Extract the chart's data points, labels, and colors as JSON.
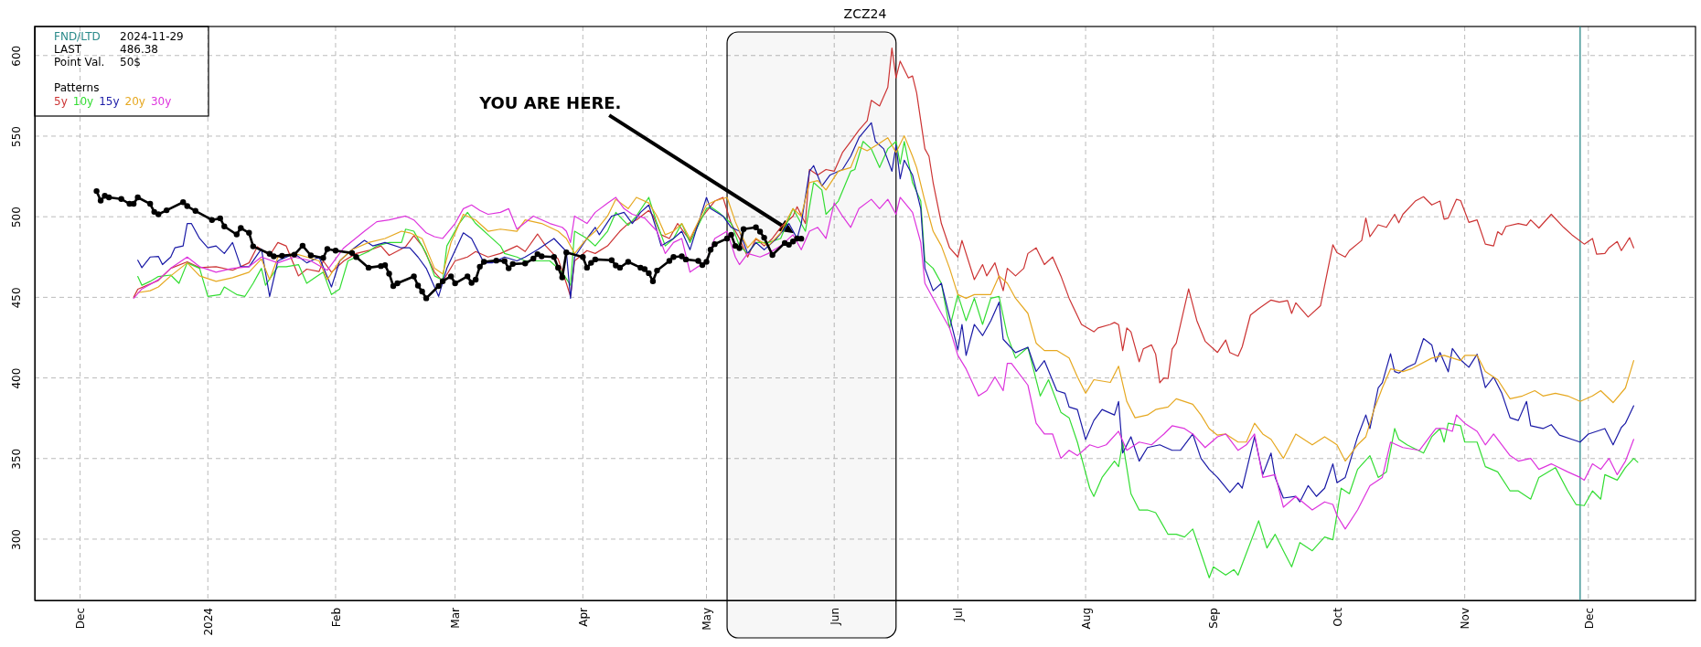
{
  "chart_data": {
    "type": "line",
    "title": "ZCZ24",
    "legend_title": "Patterns",
    "legend": "top left",
    "grid": true,
    "xlim": [
      "2023-11-20",
      "2024-12-27"
    ],
    "ylim": [
      262,
      618
    ],
    "xticks": [
      {
        "value": "2023-12-01",
        "label": "Dec"
      },
      {
        "value": "2024-01-01",
        "label": "2024"
      },
      {
        "value": "2024-02-01",
        "label": "Feb"
      },
      {
        "value": "2024-03-01",
        "label": "Mar"
      },
      {
        "value": "2024-04-01",
        "label": "Apr"
      },
      {
        "value": "2024-05-01",
        "label": "May"
      },
      {
        "value": "2024-06-01",
        "label": "Jun"
      },
      {
        "value": "2024-07-01",
        "label": "Jul"
      },
      {
        "value": "2024-08-01",
        "label": "Aug"
      },
      {
        "value": "2024-09-01",
        "label": "Sep"
      },
      {
        "value": "2024-10-01",
        "label": "Oct"
      },
      {
        "value": "2024-11-01",
        "label": "Nov"
      },
      {
        "value": "2024-12-01",
        "label": "Dec"
      }
    ],
    "yticks": [
      300,
      350,
      400,
      450,
      500,
      550,
      600
    ],
    "annotations": [
      "FND/LTD",
      "2024-11-29",
      "LAST",
      "486.38",
      "Point Val.",
      "50$",
      "YOU ARE HERE."
    ],
    "ref_lines": [
      {
        "axis": "x",
        "value": "2024-11-29",
        "color": "#2a8a8a"
      }
    ],
    "bands": [
      {
        "axis": "x",
        "from": "2024-05-06",
        "to": "2024-06-16",
        "color": "#000000"
      }
    ],
    "series": [
      {
        "name": "5y",
        "color": "#cc3333",
        "x": [
          "2023-12-14",
          "2023-12-15",
          "2023-12-20",
          "2023-12-23",
          "2023-12-27",
          "2023-12-30",
          "2024-01-03",
          "2024-01-07",
          "2024-01-11",
          "2024-01-13",
          "2024-01-16",
          "2024-01-18",
          "2024-01-20",
          "2024-01-23",
          "2024-01-25",
          "2024-01-28",
          "2024-01-29",
          "2024-01-31",
          "2024-02-03",
          "2024-02-06",
          "2024-02-09",
          "2024-02-12",
          "2024-02-14",
          "2024-02-18",
          "2024-02-20",
          "2024-02-22",
          "2024-02-25",
          "2024-02-27",
          "2024-03-01",
          "2024-03-04",
          "2024-03-06",
          "2024-03-09",
          "2024-03-12",
          "2024-03-16",
          "2024-03-18",
          "2024-03-21",
          "2024-03-23",
          "2024-03-26",
          "2024-03-28",
          "2024-03-29",
          "2024-03-30",
          "2024-04-02",
          "2024-04-04",
          "2024-04-07",
          "2024-04-10",
          "2024-04-12",
          "2024-04-14",
          "2024-04-17",
          "2024-04-18",
          "2024-04-20",
          "2024-04-22",
          "2024-04-24",
          "2024-04-27",
          "2024-04-28",
          "2024-04-30",
          "2024-05-03",
          "2024-05-05",
          "2024-05-07",
          "2024-05-09",
          "2024-05-11",
          "2024-05-13",
          "2024-05-15",
          "2024-05-17",
          "2024-05-19",
          "2024-05-22",
          "2024-05-23",
          "2024-05-25",
          "2024-05-26",
          "2024-05-28",
          "2024-05-30",
          "2024-06-01",
          "2024-06-03",
          "2024-06-05",
          "2024-06-07",
          "2024-06-09",
          "2024-06-10",
          "2024-06-12",
          "2024-06-14",
          "2024-06-15",
          "2024-06-16",
          "2024-06-17",
          "2024-06-19",
          "2024-06-20",
          "2024-06-21",
          "2024-06-23",
          "2024-06-24",
          "2024-06-25",
          "2024-06-27",
          "2024-06-29",
          "2024-07-01",
          "2024-07-02",
          "2024-07-05",
          "2024-07-07",
          "2024-07-08",
          "2024-07-10",
          "2024-07-12",
          "2024-07-13",
          "2024-07-15",
          "2024-07-17",
          "2024-07-18",
          "2024-07-20",
          "2024-07-22",
          "2024-07-24",
          "2024-07-26",
          "2024-07-28",
          "2024-07-31",
          "2024-08-03",
          "2024-08-04",
          "2024-08-07",
          "2024-08-08",
          "2024-08-09",
          "2024-08-10",
          "2024-08-11",
          "2024-08-12",
          "2024-08-14",
          "2024-08-15",
          "2024-08-17",
          "2024-08-18",
          "2024-08-19",
          "2024-08-20",
          "2024-08-21",
          "2024-08-22",
          "2024-08-23",
          "2024-08-26",
          "2024-08-28",
          "2024-08-30",
          "2024-09-02",
          "2024-09-04",
          "2024-09-05",
          "2024-09-07",
          "2024-09-08",
          "2024-09-10",
          "2024-09-12",
          "2024-09-15",
          "2024-09-17",
          "2024-09-19",
          "2024-09-20",
          "2024-09-21",
          "2024-09-24",
          "2024-09-27",
          "2024-09-30",
          "2024-10-01",
          "2024-10-03",
          "2024-10-04",
          "2024-10-07",
          "2024-10-08",
          "2024-10-09",
          "2024-10-11",
          "2024-10-13",
          "2024-10-15",
          "2024-10-16",
          "2024-10-17",
          "2024-10-20",
          "2024-10-22",
          "2024-10-24",
          "2024-10-26",
          "2024-10-27",
          "2024-10-28",
          "2024-10-30",
          "2024-10-31",
          "2024-11-02",
          "2024-11-04",
          "2024-11-06",
          "2024-11-08",
          "2024-11-09",
          "2024-11-10",
          "2024-11-11",
          "2024-11-14",
          "2024-11-16",
          "2024-11-17",
          "2024-11-19",
          "2024-11-22",
          "2024-11-25",
          "2024-11-27",
          "2024-11-30",
          "2024-12-02",
          "2024-12-03",
          "2024-12-05",
          "2024-12-06",
          "2024-12-08",
          "2024-12-09",
          "2024-12-11",
          "2024-12-12"
        ],
        "values": [
          450,
          455,
          460.5,
          468,
          472,
          468.4,
          469,
          466.8,
          471.4,
          481.4,
          476,
          484,
          481.9,
          463.3,
          467.5,
          466,
          472.6,
          465.6,
          472.6,
          477.2,
          479,
          481.9,
          476,
          481.4,
          488.3,
          481.9,
          465.6,
          459.9,
          472.6,
          475,
          478.4,
          475,
          477.2,
          481.9,
          478.4,
          489.3,
          481.9,
          473.8,
          458.7,
          450.6,
          472.6,
          479,
          477.2,
          481.9,
          491,
          495.8,
          498,
          503.9,
          500.9,
          488.8,
          486.5,
          495.8,
          485.3,
          491,
          500,
          509.7,
          512,
          495.8,
          486.5,
          475,
          486.5,
          481.9,
          486.5,
          493.4,
          500.4,
          506.2,
          495.8,
          529.3,
          525.9,
          529.3,
          528.2,
          539.8,
          546.7,
          553.7,
          559.5,
          572.2,
          568.7,
          580.3,
          604.6,
          586.1,
          596.5,
          586.1,
          587.3,
          576.8,
          542.1,
          537.5,
          521.2,
          495.8,
          480.7,
          475,
          485.3,
          461,
          470.3,
          463.3,
          471.4,
          454.1,
          468,
          463.3,
          468,
          477.2,
          480.7,
          470.3,
          475,
          463.3,
          449.4,
          433.2,
          428.6,
          431,
          433.2,
          434.4,
          433,
          417,
          431,
          428.6,
          410,
          418,
          420.5,
          414.7,
          397,
          400,
          399.6,
          418,
          421.6,
          455.2,
          435.5,
          422.8,
          415.8,
          423.5,
          415.8,
          413.5,
          419.3,
          439,
          443,
          448.3,
          447,
          448,
          440,
          446.6,
          437.8,
          444.8,
          482.6,
          477.7,
          475,
          479,
          485.3,
          499.2,
          487.6,
          495,
          493.4,
          501.5,
          496.2,
          501.5,
          509.7,
          512.4,
          507.3,
          509.7,
          498.5,
          499.2,
          510.8,
          510,
          496.5,
          498,
          483,
          481.9,
          490.7,
          488.8,
          494,
          495.8,
          494.6,
          498,
          493,
          501.5,
          493.4,
          488.8,
          483,
          486.5,
          476.8,
          477.2,
          480.7,
          484.6,
          479,
          487,
          480.7
        ]
      },
      {
        "name": "10y",
        "color": "#33dd33",
        "x": [
          "2023-12-15",
          "2023-12-16",
          "2023-12-18",
          "2023-12-20",
          "2023-12-23",
          "2023-12-25",
          "2023-12-27",
          "2023-12-30",
          "2024-01-01",
          "2024-01-04",
          "2024-01-05",
          "2024-01-08",
          "2024-01-10",
          "2024-01-12",
          "2024-01-14",
          "2024-01-15",
          "2024-01-18",
          "2024-01-20",
          "2024-01-23",
          "2024-01-25",
          "2024-01-27",
          "2024-01-29",
          "2024-01-31",
          "2024-02-02",
          "2024-02-04",
          "2024-02-06",
          "2024-02-09",
          "2024-02-11",
          "2024-02-14",
          "2024-02-17",
          "2024-02-18",
          "2024-02-20",
          "2024-02-23",
          "2024-02-25",
          "2024-02-27",
          "2024-02-28",
          "2024-03-02",
          "2024-03-04",
          "2024-03-06",
          "2024-03-09",
          "2024-03-12",
          "2024-03-13",
          "2024-03-16",
          "2024-03-18",
          "2024-03-21",
          "2024-03-24",
          "2024-03-27",
          "2024-03-29",
          "2024-03-30",
          "2024-04-02",
          "2024-04-04",
          "2024-04-07",
          "2024-04-09",
          "2024-04-12",
          "2024-04-14",
          "2024-04-17",
          "2024-04-19",
          "2024-04-21",
          "2024-04-23",
          "2024-04-25",
          "2024-04-27",
          "2024-05-01",
          "2024-05-02",
          "2024-05-04",
          "2024-05-07",
          "2024-05-09",
          "2024-05-11",
          "2024-05-13",
          "2024-05-16",
          "2024-05-19",
          "2024-05-22",
          "2024-05-23",
          "2024-05-25",
          "2024-05-27",
          "2024-05-29",
          "2024-05-30",
          "2024-06-02",
          "2024-06-05",
          "2024-06-06",
          "2024-06-08",
          "2024-06-10",
          "2024-06-12",
          "2024-06-14",
          "2024-06-16",
          "2024-06-17",
          "2024-06-18",
          "2024-06-20",
          "2024-06-22",
          "2024-06-23",
          "2024-06-25",
          "2024-06-27",
          "2024-06-29",
          "2024-07-01",
          "2024-07-03",
          "2024-07-05",
          "2024-07-07",
          "2024-07-09",
          "2024-07-11",
          "2024-07-13",
          "2024-07-15",
          "2024-07-18",
          "2024-07-21",
          "2024-07-23",
          "2024-07-26",
          "2024-07-28",
          "2024-07-30",
          "2024-08-02",
          "2024-08-03",
          "2024-08-05",
          "2024-08-08",
          "2024-08-09",
          "2024-08-10",
          "2024-08-12",
          "2024-08-14",
          "2024-08-16",
          "2024-08-18",
          "2024-08-21",
          "2024-08-23",
          "2024-08-25",
          "2024-08-27",
          "2024-08-29",
          "2024-08-31",
          "2024-09-01",
          "2024-09-04",
          "2024-09-06",
          "2024-09-07",
          "2024-09-12",
          "2024-09-14",
          "2024-09-16",
          "2024-09-18",
          "2024-09-20",
          "2024-09-22",
          "2024-09-25",
          "2024-09-28",
          "2024-09-30",
          "2024-10-02",
          "2024-10-04",
          "2024-10-06",
          "2024-10-09",
          "2024-10-11",
          "2024-10-13",
          "2024-10-15",
          "2024-10-16",
          "2024-10-18",
          "2024-10-22",
          "2024-10-24",
          "2024-10-26",
          "2024-10-27",
          "2024-10-28",
          "2024-10-31",
          "2024-11-01",
          "2024-11-04",
          "2024-11-06",
          "2024-11-09",
          "2024-11-12",
          "2024-11-14",
          "2024-11-17",
          "2024-11-19",
          "2024-11-23",
          "2024-11-26",
          "2024-11-28",
          "2024-11-30",
          "2024-12-02",
          "2024-12-04",
          "2024-12-05",
          "2024-12-08",
          "2024-12-10",
          "2024-12-12",
          "2024-12-13"
        ],
        "values": [
          462.9,
          457.5,
          459.9,
          462.9,
          463.8,
          458.7,
          471.4,
          468,
          450.6,
          451.7,
          456.4,
          451.7,
          450.6,
          458.7,
          468,
          457.5,
          469,
          469,
          470.3,
          458.7,
          462.2,
          465.6,
          451.7,
          455.2,
          472.6,
          475,
          478.4,
          481.9,
          484,
          484,
          492.3,
          491,
          477.2,
          463.3,
          460.5,
          481.9,
          495.8,
          502.7,
          495.8,
          488.8,
          481.9,
          477.2,
          475,
          472.6,
          472.6,
          472.6,
          465.6,
          457.5,
          491,
          486.5,
          481.9,
          491,
          502.7,
          494.6,
          500.4,
          512,
          495.8,
          481.9,
          486.5,
          495.8,
          484,
          505,
          506.2,
          502.7,
          495.8,
          481.9,
          477.2,
          484,
          484,
          486.5,
          505,
          500.4,
          491,
          521.2,
          516.6,
          501.5,
          509.7,
          528.2,
          529.3,
          546.7,
          542.1,
          530.5,
          542.1,
          546.7,
          532.8,
          546.7,
          521.2,
          509.7,
          472.6,
          468,
          458.7,
          430.9,
          451.7,
          435.5,
          449.4,
          433.2,
          449.4,
          450.6,
          426.3,
          412.3,
          419,
          388.8,
          398.9,
          378.7,
          375.3,
          360.2,
          331.6,
          326.5,
          338.3,
          348.4,
          345,
          360.2,
          328.2,
          318.1,
          318.1,
          316.4,
          303,
          303,
          301.3,
          306.3,
          291.2,
          276,
          282.8,
          277.7,
          281.1,
          277.7,
          311.4,
          294.5,
          303,
          292.8,
          282.8,
          297.9,
          292.8,
          301.3,
          299.6,
          331.6,
          328.2,
          343.3,
          351.8,
          338.3,
          341.7,
          368.6,
          361.9,
          358.5,
          353.4,
          363.5,
          368.6,
          360.2,
          371.9,
          370.3,
          360.2,
          360.2,
          345,
          341.7,
          329.9,
          329.9,
          324.8,
          338.3,
          344.4,
          329.9,
          321.5,
          320.8,
          329.9,
          324.8,
          340,
          336.6,
          344.4,
          350.1,
          347.7
        ]
      },
      {
        "name": "15y",
        "color": "#1a1aa6",
        "x": [
          "2023-12-15",
          "2023-12-16",
          "2023-12-18",
          "2023-12-20",
          "2023-12-21",
          "2023-12-23",
          "2023-12-24",
          "2023-12-26",
          "2023-12-27",
          "2023-12-28",
          "2023-12-30",
          "2024-01-01",
          "2024-01-03",
          "2024-01-05",
          "2024-01-07",
          "2024-01-09",
          "2024-01-11",
          "2024-01-14",
          "2024-01-16",
          "2024-01-18",
          "2024-01-22",
          "2024-01-25",
          "2024-01-28",
          "2024-01-31",
          "2024-02-02",
          "2024-02-05",
          "2024-02-08",
          "2024-02-10",
          "2024-02-13",
          "2024-02-17",
          "2024-02-19",
          "2024-02-21",
          "2024-02-23",
          "2024-02-26",
          "2024-02-28",
          "2024-03-03",
          "2024-03-05",
          "2024-03-08",
          "2024-03-10",
          "2024-03-13",
          "2024-03-16",
          "2024-03-18",
          "2024-03-21",
          "2024-03-25",
          "2024-03-28",
          "2024-03-29",
          "2024-03-30",
          "2024-04-02",
          "2024-04-04",
          "2024-04-05",
          "2024-04-08",
          "2024-04-11",
          "2024-04-13",
          "2024-04-15",
          "2024-04-17",
          "2024-04-19",
          "2024-04-20",
          "2024-04-23",
          "2024-04-25",
          "2024-04-27",
          "2024-05-01",
          "2024-05-02",
          "2024-05-05",
          "2024-05-07",
          "2024-05-09",
          "2024-05-11",
          "2024-05-13",
          "2024-05-15",
          "2024-05-18",
          "2024-05-21",
          "2024-05-23",
          "2024-05-24",
          "2024-05-26",
          "2024-05-27",
          "2024-05-29",
          "2024-05-31",
          "2024-06-03",
          "2024-06-05",
          "2024-06-07",
          "2024-06-10",
          "2024-06-11",
          "2024-06-13",
          "2024-06-15",
          "2024-06-16",
          "2024-06-17",
          "2024-06-18",
          "2024-06-20",
          "2024-06-22",
          "2024-06-23",
          "2024-06-25",
          "2024-06-27",
          "2024-06-29",
          "2024-07-01",
          "2024-07-02",
          "2024-07-03",
          "2024-07-05",
          "2024-07-07",
          "2024-07-09",
          "2024-07-11",
          "2024-07-12",
          "2024-07-15",
          "2024-07-18",
          "2024-07-20",
          "2024-07-22",
          "2024-07-25",
          "2024-07-27",
          "2024-07-28",
          "2024-07-30",
          "2024-08-01",
          "2024-08-03",
          "2024-08-05",
          "2024-08-08",
          "2024-08-09",
          "2024-08-10",
          "2024-08-12",
          "2024-08-14",
          "2024-08-16",
          "2024-08-19",
          "2024-08-22",
          "2024-08-24",
          "2024-08-27",
          "2024-08-29",
          "2024-08-31",
          "2024-09-02",
          "2024-09-05",
          "2024-09-07",
          "2024-09-08",
          "2024-09-11",
          "2024-09-13",
          "2024-09-15",
          "2024-09-16",
          "2024-09-18",
          "2024-09-21",
          "2024-09-22",
          "2024-09-24",
          "2024-09-26",
          "2024-09-28",
          "2024-09-30",
          "2024-10-01",
          "2024-10-03",
          "2024-10-06",
          "2024-10-08",
          "2024-10-09",
          "2024-10-11",
          "2024-10-12",
          "2024-10-14",
          "2024-10-15",
          "2024-10-16",
          "2024-10-18",
          "2024-10-20",
          "2024-10-22",
          "2024-10-24",
          "2024-10-25",
          "2024-10-26",
          "2024-10-28",
          "2024-10-29",
          "2024-10-31",
          "2024-11-02",
          "2024-11-04",
          "2024-11-06",
          "2024-11-08",
          "2024-11-10",
          "2024-11-12",
          "2024-11-14",
          "2024-11-16",
          "2024-11-17",
          "2024-11-20",
          "2024-11-22",
          "2024-11-24",
          "2024-11-27",
          "2024-11-29",
          "2024-12-01",
          "2024-12-05",
          "2024-12-07",
          "2024-12-09",
          "2024-12-10",
          "2024-12-12"
        ],
        "values": [
          473,
          468.4,
          475,
          475.4,
          470.3,
          475,
          480.7,
          481.9,
          495.8,
          495.8,
          486.5,
          480.7,
          481.9,
          477.2,
          484,
          469,
          469,
          480,
          450.6,
          472.6,
          477.2,
          471.4,
          475,
          456.4,
          472.6,
          479.5,
          485.3,
          481.9,
          484,
          480.7,
          480.7,
          475,
          468,
          450.6,
          468,
          490,
          486.5,
          471.4,
          471.4,
          475,
          472.6,
          475,
          479.5,
          486.5,
          478.4,
          449.4,
          475,
          486.5,
          493.4,
          488.8,
          500.4,
          502.7,
          495.8,
          502.7,
          507.3,
          491,
          481.9,
          486.5,
          491,
          479.5,
          512,
          505,
          500.4,
          493.4,
          491,
          477.2,
          484,
          479.5,
          486.5,
          495.8,
          486.5,
          495.8,
          528.2,
          531.7,
          519,
          525.9,
          529.3,
          537.5,
          549,
          558.3,
          546.7,
          542.1,
          528.2,
          544.4,
          523.5,
          535.1,
          525.9,
          505,
          468,
          454.1,
          458.7,
          437.8,
          417.4,
          433.2,
          414,
          433.2,
          426.3,
          435.5,
          447,
          424,
          415.7,
          419,
          404,
          410.7,
          392.1,
          390.5,
          382,
          380.4,
          361.8,
          373.6,
          380.4,
          377,
          385.4,
          353.4,
          363.5,
          348.4,
          356.8,
          358.5,
          355.1,
          355.1,
          365.2,
          350.1,
          343.3,
          338.3,
          328.9,
          334.9,
          331.6,
          363.5,
          340,
          353.4,
          338.3,
          325.5,
          326.5,
          323.1,
          333.2,
          326.5,
          331.6,
          346.7,
          335,
          338.3,
          363.5,
          377,
          368.6,
          393.8,
          397,
          415,
          403.9,
          403,
          406.6,
          409,
          424.4,
          420.5,
          410,
          415.8,
          403.8,
          418.2,
          411.2,
          406.6,
          414.7,
          394,
          400.6,
          390.5,
          375.3,
          373.6,
          385.4,
          370.3,
          368.6,
          371,
          364.5,
          361.9,
          360.2,
          365.2,
          368.6,
          358.5,
          369.3,
          371.9,
          382.7
        ]
      },
      {
        "name": "20y",
        "color": "#e6a820",
        "x": [
          "2023-12-15",
          "2023-12-18",
          "2023-12-20",
          "2023-12-23",
          "2023-12-27",
          "2023-12-30",
          "2024-01-03",
          "2024-01-07",
          "2024-01-11",
          "2024-01-14",
          "2024-01-16",
          "2024-01-18",
          "2024-01-22",
          "2024-01-25",
          "2024-01-28",
          "2024-01-30",
          "2024-02-02",
          "2024-02-05",
          "2024-02-09",
          "2024-02-13",
          "2024-02-17",
          "2024-02-19",
          "2024-02-22",
          "2024-02-25",
          "2024-02-27",
          "2024-02-29",
          "2024-03-03",
          "2024-03-06",
          "2024-03-09",
          "2024-03-12",
          "2024-03-16",
          "2024-03-18",
          "2024-03-22",
          "2024-03-26",
          "2024-03-28",
          "2024-03-30",
          "2024-04-02",
          "2024-04-04",
          "2024-04-07",
          "2024-04-09",
          "2024-04-12",
          "2024-04-14",
          "2024-04-17",
          "2024-04-19",
          "2024-04-21",
          "2024-04-23",
          "2024-04-25",
          "2024-04-27",
          "2024-05-01",
          "2024-05-03",
          "2024-05-06",
          "2024-05-08",
          "2024-05-09",
          "2024-05-11",
          "2024-05-13",
          "2024-05-16",
          "2024-05-19",
          "2024-05-21",
          "2024-05-22",
          "2024-05-24",
          "2024-05-26",
          "2024-05-28",
          "2024-05-30",
          "2024-06-02",
          "2024-06-05",
          "2024-06-07",
          "2024-06-09",
          "2024-06-12",
          "2024-06-14",
          "2024-06-16",
          "2024-06-18",
          "2024-06-20",
          "2024-06-21",
          "2024-06-23",
          "2024-06-25",
          "2024-06-27",
          "2024-06-29",
          "2024-07-01",
          "2024-07-03",
          "2024-07-05",
          "2024-07-07",
          "2024-07-09",
          "2024-07-11",
          "2024-07-13",
          "2024-07-15",
          "2024-07-18",
          "2024-07-20",
          "2024-07-22",
          "2024-07-25",
          "2024-07-28",
          "2024-07-30",
          "2024-08-01",
          "2024-08-03",
          "2024-08-07",
          "2024-08-09",
          "2024-08-11",
          "2024-08-13",
          "2024-08-16",
          "2024-08-18",
          "2024-08-21",
          "2024-08-23",
          "2024-08-25",
          "2024-08-27",
          "2024-08-29",
          "2024-08-31",
          "2024-09-02",
          "2024-09-04",
          "2024-09-07",
          "2024-09-09",
          "2024-09-11",
          "2024-09-13",
          "2024-09-15",
          "2024-09-18",
          "2024-09-21",
          "2024-09-25",
          "2024-09-28",
          "2024-09-30",
          "2024-10-01",
          "2024-10-03",
          "2024-10-06",
          "2024-10-08",
          "2024-10-10",
          "2024-10-12",
          "2024-10-14",
          "2024-10-17",
          "2024-10-19",
          "2024-10-24",
          "2024-10-27",
          "2024-10-31",
          "2024-11-01",
          "2024-11-04",
          "2024-11-06",
          "2024-11-09",
          "2024-11-12",
          "2024-11-15",
          "2024-11-18",
          "2024-11-20",
          "2024-11-23",
          "2024-11-26",
          "2024-11-29",
          "2024-12-02",
          "2024-12-04",
          "2024-12-07",
          "2024-12-10",
          "2024-12-12"
        ],
        "values": [
          452.9,
          454.1,
          456.4,
          463.3,
          471.4,
          463.3,
          459.9,
          462.2,
          465.6,
          473.8,
          461,
          474.9,
          477.2,
          475,
          472.6,
          461,
          472.6,
          479.5,
          484,
          486.5,
          491,
          490,
          486.5,
          468,
          464.5,
          484,
          501.5,
          498,
          491,
          492.3,
          491,
          498,
          495.8,
          491,
          486.5,
          477.2,
          486.5,
          491,
          500.4,
          510.8,
          505,
          512,
          508.5,
          500.4,
          488.8,
          491,
          495.8,
          486.5,
          507.3,
          509.7,
          512,
          496.9,
          491,
          480.7,
          486.5,
          481.9,
          490,
          500.4,
          505,
          500.4,
          521.2,
          522.4,
          516.6,
          528.2,
          530.5,
          543.3,
          540.9,
          545.6,
          549,
          539.8,
          550.2,
          537.5,
          530.5,
          509.7,
          491,
          481.9,
          468,
          451.7,
          449.4,
          451.7,
          451.7,
          451.7,
          463.3,
          458.7,
          449.4,
          440,
          421.6,
          417,
          417,
          412.4,
          400.8,
          390.5,
          398.9,
          397.2,
          407.3,
          385.4,
          375.3,
          377,
          380.4,
          382,
          387.1,
          385.4,
          383.7,
          377,
          368.6,
          364.5,
          365.2,
          360.2,
          360.2,
          371.9,
          365.2,
          361.9,
          350.1,
          365.2,
          358.5,
          363.5,
          360.2,
          358.5,
          348.4,
          358.5,
          363.5,
          380.4,
          393.8,
          405.6,
          403.9,
          405.6,
          412.3,
          414,
          410.7,
          414,
          414,
          404,
          398.9,
          387.1,
          388.8,
          392.1,
          388.8,
          390.5,
          388.8,
          385.4,
          388.8,
          392.1,
          384.7,
          393.8,
          410.7
        ]
      },
      {
        "name": "30y",
        "color": "#dd33dd",
        "x": [
          "2023-12-14",
          "2023-12-16",
          "2023-12-20",
          "2023-12-23",
          "2023-12-27",
          "2023-12-30",
          "2024-01-03",
          "2024-01-07",
          "2024-01-11",
          "2024-01-14",
          "2024-01-18",
          "2024-01-22",
          "2024-01-26",
          "2024-01-30",
          "2024-02-03",
          "2024-02-08",
          "2024-02-11",
          "2024-02-14",
          "2024-02-18",
          "2024-02-20",
          "2024-02-23",
          "2024-02-25",
          "2024-02-27",
          "2024-03-01",
          "2024-03-03",
          "2024-03-05",
          "2024-03-07",
          "2024-03-09",
          "2024-03-12",
          "2024-03-14",
          "2024-03-16",
          "2024-03-20",
          "2024-03-24",
          "2024-03-27",
          "2024-03-28",
          "2024-03-29",
          "2024-03-30",
          "2024-04-02",
          "2024-04-04",
          "2024-04-07",
          "2024-04-09",
          "2024-04-11",
          "2024-04-13",
          "2024-04-16",
          "2024-04-19",
          "2024-04-21",
          "2024-04-23",
          "2024-04-25",
          "2024-04-27",
          "2024-05-01",
          "2024-05-03",
          "2024-05-06",
          "2024-05-08",
          "2024-05-09",
          "2024-05-11",
          "2024-05-14",
          "2024-05-16",
          "2024-05-19",
          "2024-05-22",
          "2024-05-24",
          "2024-05-26",
          "2024-05-28",
          "2024-05-30",
          "2024-06-01",
          "2024-06-03",
          "2024-06-05",
          "2024-06-07",
          "2024-06-10",
          "2024-06-12",
          "2024-06-14",
          "2024-06-16",
          "2024-06-17",
          "2024-06-20",
          "2024-06-22",
          "2024-06-23",
          "2024-06-25",
          "2024-06-27",
          "2024-06-29",
          "2024-07-01",
          "2024-07-03",
          "2024-07-06",
          "2024-07-08",
          "2024-07-10",
          "2024-07-12",
          "2024-07-13",
          "2024-07-14",
          "2024-07-18",
          "2024-07-20",
          "2024-07-22",
          "2024-07-24",
          "2024-07-26",
          "2024-07-28",
          "2024-07-30",
          "2024-08-02",
          "2024-08-04",
          "2024-08-06",
          "2024-08-09",
          "2024-08-11",
          "2024-08-14",
          "2024-08-17",
          "2024-08-20",
          "2024-08-22",
          "2024-08-25",
          "2024-08-27",
          "2024-08-30",
          "2024-09-02",
          "2024-09-04",
          "2024-09-07",
          "2024-09-09",
          "2024-09-11",
          "2024-09-13",
          "2024-09-16",
          "2024-09-18",
          "2024-09-21",
          "2024-09-25",
          "2024-09-28",
          "2024-09-30",
          "2024-10-01",
          "2024-10-03",
          "2024-10-06",
          "2024-10-09",
          "2024-10-12",
          "2024-10-14",
          "2024-10-17",
          "2024-10-21",
          "2024-10-25",
          "2024-10-27",
          "2024-10-29",
          "2024-10-30",
          "2024-11-01",
          "2024-11-04",
          "2024-11-06",
          "2024-11-08",
          "2024-11-12",
          "2024-11-14",
          "2024-11-17",
          "2024-11-19",
          "2024-11-22",
          "2024-11-26",
          "2024-11-29",
          "2024-11-30",
          "2024-12-02",
          "2024-12-04",
          "2024-12-06",
          "2024-12-08",
          "2024-12-10",
          "2024-12-12"
        ],
        "values": [
          449.4,
          455.2,
          460.9,
          468,
          475,
          469,
          465.6,
          468,
          469,
          475,
          471.4,
          475,
          472.6,
          466.8,
          480.7,
          491,
          496.9,
          498,
          500.4,
          498,
          490,
          487.6,
          486.5,
          495.8,
          505,
          507.3,
          503.9,
          501.5,
          502.7,
          505,
          492.3,
          500.4,
          495.8,
          493.4,
          491,
          484,
          500.4,
          495.8,
          502.7,
          508.5,
          512,
          505,
          501.5,
          499.2,
          491,
          477.2,
          484,
          486.5,
          465.6,
          472.6,
          486.5,
          491,
          475,
          470.3,
          477.2,
          475,
          477.2,
          481.9,
          488.8,
          479.5,
          491,
          493.4,
          486.5,
          508.5,
          500.4,
          493.4,
          505,
          510.8,
          505,
          510.8,
          501.5,
          512,
          502.7,
          484,
          458.7,
          449.4,
          440,
          430.9,
          414,
          405.6,
          388.8,
          392.1,
          400.6,
          392.1,
          409,
          409,
          395.5,
          371.9,
          365.2,
          365.2,
          350.1,
          355.1,
          351.8,
          358.5,
          356.8,
          358.5,
          366.9,
          355.1,
          360.2,
          358.5,
          365.2,
          370.3,
          368.6,
          365.2,
          356.8,
          363.5,
          365.2,
          355.1,
          358.5,
          365.2,
          338.3,
          340,
          319.8,
          326.5,
          318.1,
          323.1,
          321.5,
          314.7,
          306.3,
          318.1,
          333.2,
          338.3,
          360.2,
          356.8,
          355.1,
          368.6,
          368.6,
          366.9,
          377,
          371.9,
          366.9,
          358.5,
          365.2,
          351.8,
          348.4,
          350.1,
          343.3,
          346.7,
          341.7,
          338.3,
          336.6,
          346.7,
          343.3,
          350.1,
          340,
          348.4,
          361.9
        ]
      },
      {
        "color": "#000000",
        "marker": "circle",
        "x": [
          "2023-12-05",
          "2023-12-06",
          "2023-12-07",
          "2023-12-08",
          "2023-12-11",
          "2023-12-13",
          "2023-12-14",
          "2023-12-15",
          "2023-12-18",
          "2023-12-19",
          "2023-12-20",
          "2023-12-22",
          "2023-12-26",
          "2023-12-27",
          "2023-12-29",
          "2024-01-02",
          "2024-01-04",
          "2024-01-05",
          "2024-01-08",
          "2024-01-09",
          "2024-01-11",
          "2024-01-12",
          "2024-01-16",
          "2024-01-17",
          "2024-01-19",
          "2024-01-22",
          "2024-01-24",
          "2024-01-26",
          "2024-01-29",
          "2024-01-30",
          "2024-02-01",
          "2024-02-05",
          "2024-02-06",
          "2024-02-09",
          "2024-02-12",
          "2024-02-13",
          "2024-02-14",
          "2024-02-15",
          "2024-02-16",
          "2024-02-20",
          "2024-02-21",
          "2024-02-22",
          "2024-02-23",
          "2024-02-26",
          "2024-02-27",
          "2024-02-29",
          "2024-03-01",
          "2024-03-04",
          "2024-03-05",
          "2024-03-06",
          "2024-03-07",
          "2024-03-08",
          "2024-03-11",
          "2024-03-13",
          "2024-03-14",
          "2024-03-15",
          "2024-03-18",
          "2024-03-20",
          "2024-03-21",
          "2024-03-22",
          "2024-03-25",
          "2024-03-26",
          "2024-03-27",
          "2024-03-28",
          "2024-04-01",
          "2024-04-02",
          "2024-04-03",
          "2024-04-04",
          "2024-04-08",
          "2024-04-09",
          "2024-04-10",
          "2024-04-12",
          "2024-04-15",
          "2024-04-16",
          "2024-04-17",
          "2024-04-18",
          "2024-04-19",
          "2024-04-22",
          "2024-04-23",
          "2024-04-25",
          "2024-04-26",
          "2024-04-29",
          "2024-04-30",
          "2024-05-01",
          "2024-05-02",
          "2024-05-03",
          "2024-05-06",
          "2024-05-07",
          "2024-05-08",
          "2024-05-09",
          "2024-05-10",
          "2024-05-13",
          "2024-05-14",
          "2024-05-15",
          "2024-05-17",
          "2024-05-20",
          "2024-05-21",
          "2024-05-22",
          "2024-05-23",
          "2024-05-24"
        ],
        "values": [
          515.9,
          510,
          513,
          512,
          511,
          508,
          508,
          512,
          508,
          503,
          501.5,
          504,
          509,
          506.6,
          503.6,
          498,
          499,
          494,
          489,
          493,
          490,
          481.6,
          477,
          475.4,
          475.8,
          476.5,
          482,
          476,
          474.4,
          480,
          479,
          477.5,
          475,
          468.4,
          469.4,
          470,
          464.7,
          457,
          458.7,
          463,
          457.3,
          453.6,
          449.4,
          457,
          460,
          463,
          458.7,
          463,
          459,
          461,
          469,
          472,
          472.8,
          472.5,
          468,
          470.7,
          471,
          474,
          476.8,
          475.4,
          475,
          468.4,
          462.4,
          477.8,
          475,
          468.4,
          471.4,
          473.5,
          473,
          469.8,
          468.4,
          472,
          468.4,
          467.5,
          465,
          460,
          466.6,
          472.6,
          475,
          475.4,
          473.5,
          472.6,
          470,
          472,
          479.5,
          483,
          486.5,
          488.8,
          481.9,
          480.5,
          492.3,
          493.4,
          490.7,
          487,
          476.3,
          483.7,
          482.6,
          484.6,
          486.5,
          486.4
        ]
      }
    ]
  }
}
